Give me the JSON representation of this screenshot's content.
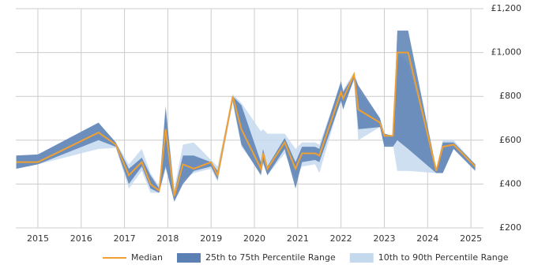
{
  "chart_data": {
    "type": "line",
    "x": [
      2014.5,
      2015,
      2016.4,
      2016.8,
      2017.1,
      2017.4,
      2017.6,
      2017.8,
      2017.95,
      2018.15,
      2018.35,
      2018.6,
      2019,
      2019.15,
      2019.5,
      2019.7,
      2020.15,
      2020.2,
      2020.3,
      2020.7,
      2020.95,
      2021.1,
      2021.4,
      2021.5,
      2022.0,
      2022.05,
      2022.3,
      2022.4,
      2022.9,
      2023.0,
      2023.2,
      2023.3,
      2023.55,
      2024.2,
      2024.35,
      2024.6,
      2025.1
    ],
    "series": [
      {
        "name": "10th to 90th Percentile Range",
        "color": "#c5d9ee",
        "band": true,
        "lower": [
          470,
          490,
          560,
          565,
          380,
          460,
          360,
          360,
          470,
          320,
          420,
          450,
          470,
          410,
          770,
          570,
          450,
          490,
          440,
          540,
          420,
          480,
          490,
          450,
          790,
          760,
          870,
          600,
          660,
          580,
          580,
          460,
          460,
          450,
          450,
          560,
          470
        ],
        "upper": [
          530,
          535,
          680,
          590,
          490,
          560,
          450,
          390,
          760,
          380,
          580,
          590,
          510,
          480,
          810,
          770,
          640,
          650,
          630,
          630,
          560,
          590,
          590,
          580,
          860,
          830,
          910,
          830,
          700,
          620,
          620,
          1000,
          950,
          470,
          600,
          600,
          490
        ]
      },
      {
        "name": "25th to 75th Percentile Range",
        "color": "#5b80b4",
        "band": true,
        "lower": [
          470,
          490,
          600,
          570,
          400,
          480,
          380,
          360,
          480,
          320,
          400,
          460,
          480,
          420,
          780,
          580,
          440,
          500,
          440,
          560,
          380,
          500,
          510,
          500,
          780,
          740,
          880,
          650,
          660,
          570,
          570,
          600,
          560,
          450,
          450,
          560,
          460
        ],
        "upper": [
          530,
          535,
          680,
          590,
          470,
          520,
          440,
          380,
          750,
          360,
          530,
          530,
          500,
          460,
          800,
          760,
          500,
          560,
          480,
          610,
          500,
          570,
          570,
          560,
          870,
          820,
          900,
          850,
          700,
          630,
          620,
          1100,
          1100,
          470,
          590,
          590,
          490
        ]
      },
      {
        "name": "Median",
        "color": "#f0a030",
        "values": [
          500,
          500,
          635,
          580,
          440,
          500,
          400,
          370,
          650,
          345,
          490,
          470,
          500,
          440,
          800,
          650,
          470,
          540,
          470,
          590,
          470,
          540,
          540,
          530,
          820,
          790,
          900,
          740,
          680,
          620,
          620,
          1000,
          1000,
          460,
          570,
          580,
          480
        ]
      }
    ],
    "xlim": [
      2014.49,
      2025.29
    ],
    "xticks": [
      2015,
      2016,
      2017,
      2018,
      2019,
      2020,
      2021,
      2022,
      2023,
      2024,
      2025
    ],
    "ylim": [
      200,
      1200
    ],
    "yticks": [
      {
        "value": 200,
        "label": "£200"
      },
      {
        "value": 400,
        "label": "£400"
      },
      {
        "value": 600,
        "label": "£600"
      },
      {
        "value": 800,
        "label": "£800"
      },
      {
        "value": 1000,
        "label": "£1,000"
      },
      {
        "value": 1200,
        "label": "£1,200"
      }
    ],
    "grid": true,
    "legend": "bottom"
  }
}
